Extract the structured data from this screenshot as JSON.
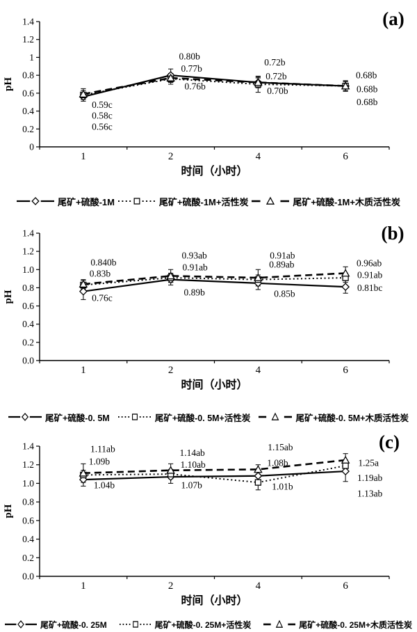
{
  "figure": {
    "background": "#ffffff",
    "ink_color": "#000000",
    "ylabel": "pH",
    "xlabel": "时间（小时）"
  },
  "chart_data": [
    {
      "type": "line",
      "panel_label": "(a)",
      "xlabel": "时间（小时）",
      "ylabel": "pH",
      "x_categories": [
        "1",
        "2",
        "4",
        "6"
      ],
      "ylim": [
        0,
        1.4
      ],
      "y_tick_labels": [
        "0",
        "0.2",
        "0.4",
        "0.6",
        "0.8",
        "1",
        "1.2",
        "1.4"
      ],
      "grid": false,
      "legend_position": "bottom",
      "series": [
        {
          "name": "尾矿+硫酸-1M",
          "line_style": "solid",
          "marker": "diamond",
          "values": [
            0.56,
            0.8,
            0.72,
            0.68
          ],
          "errors": [
            0.05,
            0.07,
            0.06,
            0.05
          ]
        },
        {
          "name": "尾矿+硫酸-1M+活性炭",
          "line_style": "dotted",
          "marker": "square",
          "values": [
            0.58,
            0.76,
            0.7,
            0.68
          ],
          "errors": [
            0.05,
            0.06,
            0.09,
            0.06
          ]
        },
        {
          "name": "尾矿+硫酸-1M+木质活性炭",
          "line_style": "dashed",
          "marker": "triangle",
          "values": [
            0.59,
            0.77,
            0.72,
            0.68
          ],
          "errors": [
            0.06,
            0.05,
            0.05,
            0.05
          ]
        }
      ],
      "point_labels": [
        {
          "text": "0.59c",
          "x": 0,
          "y": 0.47,
          "dx": 27,
          "series": 2
        },
        {
          "text": "0.58c",
          "x": 0,
          "y": 0.35,
          "dx": 27,
          "series": 1
        },
        {
          "text": "0.56c",
          "x": 0,
          "y": 0.225,
          "dx": 27,
          "series": 0
        },
        {
          "text": "0.80b",
          "x": 1,
          "y": 1.01,
          "dx": 27,
          "series": 0
        },
        {
          "text": "0.77b",
          "x": 1,
          "y": 0.875,
          "dx": 30,
          "series": 2
        },
        {
          "text": "0.76b",
          "x": 1,
          "y": 0.675,
          "dx": 35,
          "series": 1
        },
        {
          "text": "0.72b",
          "x": 2,
          "y": 0.945,
          "dx": 24,
          "series": 2
        },
        {
          "text": "0.72b",
          "x": 2,
          "y": 0.79,
          "dx": 26,
          "series": 0
        },
        {
          "text": "0.70b",
          "x": 2,
          "y": 0.625,
          "dx": 28,
          "series": 1
        },
        {
          "text": "0.68b",
          "x": 3,
          "y": 0.8,
          "dx": 30,
          "series": 2
        },
        {
          "text": "0.68b",
          "x": 3,
          "y": 0.645,
          "dx": 31,
          "series": 1
        },
        {
          "text": "0.68b",
          "x": 3,
          "y": 0.5,
          "dx": 31,
          "series": 0
        }
      ]
    },
    {
      "type": "line",
      "panel_label": "(b)",
      "xlabel": "时间（小时）",
      "ylabel": "pH",
      "x_categories": [
        "1",
        "2",
        "4",
        "6"
      ],
      "ylim": [
        0,
        1.4
      ],
      "y_tick_labels": [
        "0.0",
        "0.2",
        "0.4",
        "0.6",
        "0.8",
        "1.0",
        "1.2",
        "1.4"
      ],
      "grid": false,
      "legend_position": "bottom",
      "series": [
        {
          "name": "尾矿+硫酸-0. 5M",
          "line_style": "solid",
          "marker": "diamond",
          "values": [
            0.76,
            0.89,
            0.85,
            0.81
          ],
          "errors": [
            0.09,
            0.06,
            0.07,
            0.07
          ]
        },
        {
          "name": "尾矿+硫酸-0. 5M+活性炭",
          "line_style": "dotted",
          "marker": "square",
          "values": [
            0.83,
            0.91,
            0.89,
            0.91
          ],
          "errors": [
            0.05,
            0.05,
            0.05,
            0.05
          ]
        },
        {
          "name": "尾矿+硫酸-0. 5M+木质活性炭",
          "line_style": "dashed",
          "marker": "triangle",
          "values": [
            0.84,
            0.93,
            0.91,
            0.96
          ],
          "errors": [
            0.05,
            0.07,
            0.09,
            0.07
          ]
        }
      ],
      "point_labels": [
        {
          "text": "0.840b",
          "x": 0,
          "y": 1.08,
          "dx": 29,
          "series": 2
        },
        {
          "text": "0.83b",
          "x": 0,
          "y": 0.955,
          "dx": 24,
          "series": 1
        },
        {
          "text": "0.76c",
          "x": 0,
          "y": 0.69,
          "dx": 27,
          "series": 0
        },
        {
          "text": "0.93ab",
          "x": 1,
          "y": 1.155,
          "dx": 34,
          "series": 2
        },
        {
          "text": "0.91ab",
          "x": 1,
          "y": 1.025,
          "dx": 35,
          "series": 1
        },
        {
          "text": "0.89b",
          "x": 1,
          "y": 0.75,
          "dx": 34,
          "series": 0
        },
        {
          "text": "0.91ab",
          "x": 2,
          "y": 1.155,
          "dx": 35,
          "series": 2
        },
        {
          "text": "0.89ab",
          "x": 2,
          "y": 1.055,
          "dx": 34,
          "series": 1
        },
        {
          "text": "0.85b",
          "x": 2,
          "y": 0.735,
          "dx": 38,
          "series": 0
        },
        {
          "text": "0.96ab",
          "x": 3,
          "y": 1.07,
          "dx": 34,
          "series": 2
        },
        {
          "text": "0.91ab",
          "x": 3,
          "y": 0.94,
          "dx": 35,
          "series": 1
        },
        {
          "text": "0.81bc",
          "x": 3,
          "y": 0.8,
          "dx": 35,
          "series": 0
        }
      ]
    },
    {
      "type": "line",
      "panel_label": "(c)",
      "xlabel": "时间（小时）",
      "ylabel": "pH",
      "x_categories": [
        "1",
        "2",
        "4",
        "6"
      ],
      "ylim": [
        0,
        1.4
      ],
      "y_tick_labels": [
        "0.0",
        "0.2",
        "0.4",
        "0.6",
        "0.8",
        "1.0",
        "1.2",
        "1.4"
      ],
      "grid": false,
      "legend_position": "bottom",
      "series": [
        {
          "name": "尾矿+硫酸-0. 25M",
          "line_style": "solid",
          "marker": "diamond",
          "values": [
            1.04,
            1.07,
            1.08,
            1.13
          ],
          "errors": [
            0.07,
            0.07,
            0.06,
            0.11
          ]
        },
        {
          "name": "尾矿+硫酸-0. 25M+活性炭",
          "line_style": "dotted",
          "marker": "square",
          "values": [
            1.09,
            1.1,
            1.01,
            1.19
          ],
          "errors": [
            0.05,
            0.05,
            0.08,
            0.06
          ]
        },
        {
          "name": "尾矿+硫酸-0. 25M+木质活性炭",
          "line_style": "dashed",
          "marker": "triangle",
          "values": [
            1.11,
            1.14,
            1.15,
            1.25
          ],
          "errors": [
            0.1,
            0.07,
            0.05,
            0.07
          ]
        }
      ],
      "point_labels": [
        {
          "text": "1.11ab",
          "x": 0,
          "y": 1.37,
          "dx": 28,
          "series": 2
        },
        {
          "text": "1.09b",
          "x": 0,
          "y": 1.235,
          "dx": 23,
          "series": 1
        },
        {
          "text": "1.04b",
          "x": 0,
          "y": 0.98,
          "dx": 30,
          "series": 0
        },
        {
          "text": "1.14ab",
          "x": 1,
          "y": 1.33,
          "dx": 31,
          "series": 2
        },
        {
          "text": "1.10ab",
          "x": 1,
          "y": 1.2,
          "dx": 32,
          "series": 1
        },
        {
          "text": "1.07b",
          "x": 1,
          "y": 0.98,
          "dx": 30,
          "series": 0
        },
        {
          "text": "1.15ab",
          "x": 2,
          "y": 1.39,
          "dx": 32,
          "series": 2
        },
        {
          "text": "1.08b",
          "x": 2,
          "y": 1.22,
          "dx": 28,
          "series": 0
        },
        {
          "text": "1.01b",
          "x": 2,
          "y": 0.965,
          "dx": 35,
          "series": 1
        },
        {
          "text": "1.25a",
          "x": 3,
          "y": 1.22,
          "dx": 33,
          "series": 2
        },
        {
          "text": "1.19ab",
          "x": 3,
          "y": 1.06,
          "dx": 35,
          "series": 1
        },
        {
          "text": "1.13ab",
          "x": 3,
          "y": 0.89,
          "dx": 35,
          "series": 0
        }
      ]
    }
  ]
}
